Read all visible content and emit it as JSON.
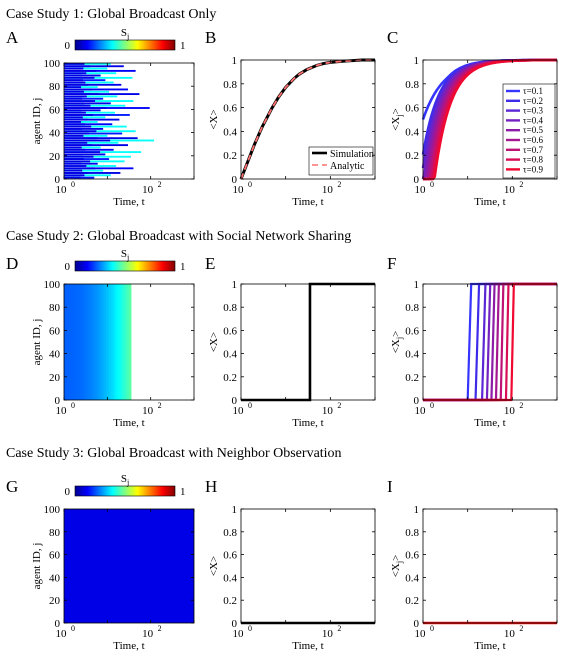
{
  "case_titles": [
    "Case Study 1: Global Broadcast Only",
    "Case Study 2: Global Broadcast with Social Network Sharing",
    "Case Study 3: Global Broadcast with Neighbor Observation"
  ],
  "colorbar": {
    "label": "S",
    "label_sub": "j",
    "min_label": "0",
    "max_label": "1"
  },
  "chart_data": [
    {
      "id": "A",
      "type": "bar",
      "panel_letter": "A",
      "xlabel": "Time, t",
      "ylabel": "agent ID, j",
      "x_scale": "log",
      "xlim": [
        1,
        1000
      ],
      "ylim": [
        0,
        100
      ],
      "x_ticks": [
        {
          "value": 1,
          "label": "10",
          "exp": "0"
        },
        {
          "value": 100,
          "label": "10",
          "exp": "2"
        }
      ],
      "y_ticks": [
        0,
        20,
        40,
        60,
        80,
        100
      ],
      "note": "horizontal bars per agent: length = broadcast time, color = S_j",
      "agent_bars": [
        {
          "j": 0,
          "t": 5,
          "s": 0.15
        },
        {
          "j": 2,
          "t": 12,
          "s": 0.38
        },
        {
          "j": 4,
          "t": 20,
          "s": 0.1
        },
        {
          "j": 6,
          "t": 8,
          "s": 0.38
        },
        {
          "j": 8,
          "t": 40,
          "s": 0.12
        },
        {
          "j": 10,
          "t": 16,
          "s": 0.38
        },
        {
          "j": 12,
          "t": 6,
          "s": 0.1
        },
        {
          "j": 14,
          "t": 25,
          "s": 0.38
        },
        {
          "j": 16,
          "t": 11,
          "s": 0.15
        },
        {
          "j": 18,
          "t": 35,
          "s": 0.38
        },
        {
          "j": 20,
          "t": 9,
          "s": 0.1
        },
        {
          "j": 22,
          "t": 60,
          "s": 0.38
        },
        {
          "j": 24,
          "t": 14,
          "s": 0.12
        },
        {
          "j": 26,
          "t": 7,
          "s": 0.38
        },
        {
          "j": 28,
          "t": 30,
          "s": 0.1
        },
        {
          "j": 30,
          "t": 18,
          "s": 0.38
        },
        {
          "j": 32,
          "t": 120,
          "s": 0.38
        },
        {
          "j": 34,
          "t": 50,
          "s": 0.1
        },
        {
          "j": 36,
          "t": 10,
          "s": 0.38
        },
        {
          "j": 38,
          "t": 22,
          "s": 0.15
        },
        {
          "j": 40,
          "t": 45,
          "s": 0.38
        },
        {
          "j": 42,
          "t": 8,
          "s": 0.1
        },
        {
          "j": 44,
          "t": 28,
          "s": 0.38
        },
        {
          "j": 46,
          "t": 13,
          "s": 0.12
        },
        {
          "j": 48,
          "t": 6,
          "s": 0.38
        },
        {
          "j": 50,
          "t": 19,
          "s": 0.1
        },
        {
          "j": 52,
          "t": 9,
          "s": 0.38
        },
        {
          "j": 54,
          "t": 33,
          "s": 0.15
        },
        {
          "j": 56,
          "t": 15,
          "s": 0.38
        },
        {
          "j": 58,
          "t": 7,
          "s": 0.1
        },
        {
          "j": 60,
          "t": 95,
          "s": 0.12
        },
        {
          "j": 62,
          "t": 26,
          "s": 0.38
        },
        {
          "j": 64,
          "t": 12,
          "s": 0.1
        },
        {
          "j": 66,
          "t": 40,
          "s": 0.38
        },
        {
          "j": 68,
          "t": 8,
          "s": 0.15
        },
        {
          "j": 70,
          "t": 17,
          "s": 0.38
        },
        {
          "j": 72,
          "t": 55,
          "s": 0.1
        },
        {
          "j": 74,
          "t": 11,
          "s": 0.38
        },
        {
          "j": 76,
          "t": 30,
          "s": 0.12
        },
        {
          "j": 78,
          "t": 6,
          "s": 0.38
        },
        {
          "j": 80,
          "t": 21,
          "s": 0.1
        },
        {
          "j": 82,
          "t": 14,
          "s": 0.38
        },
        {
          "j": 84,
          "t": 9,
          "s": 0.15
        },
        {
          "j": 86,
          "t": 38,
          "s": 0.38
        },
        {
          "j": 88,
          "t": 7,
          "s": 0.1
        },
        {
          "j": 90,
          "t": 16,
          "s": 0.38
        },
        {
          "j": 92,
          "t": 45,
          "s": 0.12
        },
        {
          "j": 94,
          "t": 10,
          "s": 0.38
        },
        {
          "j": 96,
          "t": 24,
          "s": 0.1
        },
        {
          "j": 98,
          "t": 12,
          "s": 0.38
        }
      ]
    },
    {
      "id": "B",
      "type": "line",
      "panel_letter": "B",
      "xlabel": "Time, t",
      "ylabel": "<X>",
      "x_scale": "log",
      "xlim": [
        1,
        1000
      ],
      "ylim": [
        0,
        1
      ],
      "x_ticks": [
        {
          "value": 1,
          "label": "10",
          "exp": "0"
        },
        {
          "value": 100,
          "label": "10",
          "exp": "2"
        }
      ],
      "y_ticks": [
        0,
        0.2,
        0.4,
        0.6,
        0.8,
        1
      ],
      "legend_position": "bottom-right",
      "series": [
        {
          "name": "Simulation",
          "color": "#000000",
          "dash": "",
          "x": [
            1,
            1.5,
            2,
            3,
            5,
            7,
            10,
            15,
            20,
            30,
            50,
            70,
            100,
            200,
            500,
            1000
          ],
          "y": [
            0,
            0.17,
            0.29,
            0.44,
            0.6,
            0.69,
            0.77,
            0.84,
            0.88,
            0.92,
            0.955,
            0.97,
            0.98,
            0.99,
            1,
            1
          ]
        },
        {
          "name": "Analytic",
          "color": "#ff7070",
          "dash": "6,4",
          "x": [
            1,
            1.5,
            2,
            3,
            5,
            7,
            10,
            15,
            20,
            30,
            50,
            70,
            100,
            200,
            500,
            1000
          ],
          "y": [
            0,
            0.17,
            0.29,
            0.44,
            0.6,
            0.69,
            0.77,
            0.84,
            0.88,
            0.92,
            0.955,
            0.97,
            0.98,
            0.99,
            1,
            1
          ]
        }
      ]
    },
    {
      "id": "C",
      "type": "line",
      "panel_letter": "C",
      "xlabel": "Time, t",
      "ylabel": "<X",
      "ylabel_sub": "j",
      "ylabel_close": ">",
      "x_scale": "log",
      "xlim": [
        1,
        1000
      ],
      "ylim": [
        0,
        1
      ],
      "x_ticks": [
        {
          "value": 1,
          "label": "10",
          "exp": "0"
        },
        {
          "value": 100,
          "label": "10",
          "exp": "2"
        }
      ],
      "y_ticks": [
        0,
        0.2,
        0.4,
        0.6,
        0.8,
        1
      ],
      "legend_position": "right",
      "tau_series": [
        {
          "name": "τ=0.1",
          "tau": 0.1,
          "color": "#3535ff"
        },
        {
          "name": "τ=0.2",
          "tau": 0.2,
          "color": "#3e2bea"
        },
        {
          "name": "τ=0.3",
          "tau": 0.3,
          "color": "#5a26d6"
        },
        {
          "name": "τ=0.4",
          "tau": 0.4,
          "color": "#7321c0"
        },
        {
          "name": "τ=0.5",
          "tau": 0.5,
          "color": "#8c1ca8"
        },
        {
          "name": "τ=0.6",
          "tau": 0.6,
          "color": "#a51790"
        },
        {
          "name": "τ=0.7",
          "tau": 0.7,
          "color": "#be1275"
        },
        {
          "name": "τ=0.8",
          "tau": 0.8,
          "color": "#d70d55"
        },
        {
          "name": "τ=0.9",
          "tau": 0.9,
          "color": "#f00830"
        }
      ]
    },
    {
      "id": "D",
      "type": "heatmap",
      "panel_letter": "D",
      "xlabel": "Time, t",
      "ylabel": "agent ID, j",
      "x_scale": "log",
      "xlim": [
        1,
        1000
      ],
      "ylim": [
        0,
        100
      ],
      "x_ticks": [
        {
          "value": 1,
          "label": "10",
          "exp": "0"
        },
        {
          "value": 100,
          "label": "10",
          "exp": "2"
        }
      ],
      "y_ticks": [
        0,
        20,
        40,
        60,
        80,
        100
      ],
      "active_until_t": 35,
      "s_start": 0.22,
      "s_end": 0.48
    },
    {
      "id": "E",
      "type": "line",
      "panel_letter": "E",
      "xlabel": "Time, t",
      "ylabel": "<X>",
      "x_scale": "log",
      "xlim": [
        1,
        1000
      ],
      "ylim": [
        0,
        1
      ],
      "x_ticks": [
        {
          "value": 1,
          "label": "10",
          "exp": "0"
        },
        {
          "value": 100,
          "label": "10",
          "exp": "2"
        }
      ],
      "y_ticks": [
        0,
        0.2,
        0.4,
        0.6,
        0.8,
        1
      ],
      "series": [
        {
          "color": "#000000",
          "x": [
            1,
            35,
            35,
            1000
          ],
          "y": [
            0,
            0,
            1,
            1
          ]
        }
      ]
    },
    {
      "id": "F",
      "type": "line",
      "panel_letter": "F",
      "xlabel": "Time, t",
      "ylabel": "<X",
      "ylabel_sub": "j",
      "ylabel_close": ">",
      "x_scale": "log",
      "xlim": [
        1,
        1000
      ],
      "ylim": [
        0,
        1
      ],
      "x_ticks": [
        {
          "value": 1,
          "label": "10",
          "exp": "0"
        },
        {
          "value": 100,
          "label": "10",
          "exp": "2"
        }
      ],
      "y_ticks": [
        0,
        0.2,
        0.4,
        0.6,
        0.8,
        1
      ],
      "step_series": [
        {
          "color": "#3535ff",
          "t_start": 10,
          "t_end": 12
        },
        {
          "color": "#3e2bea",
          "t_start": 15,
          "t_end": 18
        },
        {
          "color": "#5a26d6",
          "t_start": 21,
          "t_end": 25
        },
        {
          "color": "#7321c0",
          "t_start": 27,
          "t_end": 32
        },
        {
          "color": "#8c1ca8",
          "t_start": 34,
          "t_end": 40
        },
        {
          "color": "#a51790",
          "t_start": 43,
          "t_end": 50
        },
        {
          "color": "#be1275",
          "t_start": 55,
          "t_end": 63
        },
        {
          "color": "#d70d55",
          "t_start": 72,
          "t_end": 82
        },
        {
          "color": "#f00830",
          "t_start": 95,
          "t_end": 108
        }
      ]
    },
    {
      "id": "G",
      "type": "heatmap",
      "panel_letter": "G",
      "xlabel": "Time, t",
      "ylabel": "agent ID, j",
      "x_scale": "log",
      "xlim": [
        1,
        1000
      ],
      "ylim": [
        0,
        100
      ],
      "x_ticks": [
        {
          "value": 1,
          "label": "10",
          "exp": "0"
        },
        {
          "value": 100,
          "label": "10",
          "exp": "2"
        }
      ],
      "y_ticks": [
        0,
        20,
        40,
        60,
        80,
        100
      ],
      "uniform_s": 0.1
    },
    {
      "id": "H",
      "type": "line",
      "panel_letter": "H",
      "xlabel": "Time, t",
      "ylabel": "<X>",
      "x_scale": "log",
      "xlim": [
        1,
        1000
      ],
      "ylim": [
        0,
        1
      ],
      "x_ticks": [
        {
          "value": 1,
          "label": "10",
          "exp": "0"
        },
        {
          "value": 100,
          "label": "10",
          "exp": "2"
        }
      ],
      "y_ticks": [
        0,
        0.2,
        0.4,
        0.6,
        0.8,
        1
      ],
      "series": [
        {
          "color": "#000000",
          "x": [
            1,
            1000
          ],
          "y": [
            0,
            0
          ]
        }
      ]
    },
    {
      "id": "I",
      "type": "line",
      "panel_letter": "I",
      "xlabel": "Time, t",
      "ylabel": "<X",
      "ylabel_sub": "j",
      "ylabel_close": ">",
      "x_scale": "log",
      "xlim": [
        1,
        1000
      ],
      "ylim": [
        0,
        1
      ],
      "x_ticks": [
        {
          "value": 1,
          "label": "10",
          "exp": "0"
        },
        {
          "value": 100,
          "label": "10",
          "exp": "2"
        }
      ],
      "y_ticks": [
        0,
        0.2,
        0.4,
        0.6,
        0.8,
        1
      ],
      "series": [
        {
          "color": "#f01010",
          "x": [
            1,
            1000
          ],
          "y": [
            0,
            0
          ]
        }
      ]
    }
  ]
}
